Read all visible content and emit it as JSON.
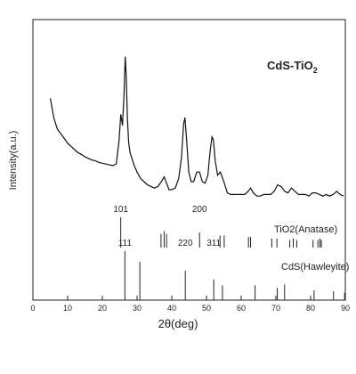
{
  "chart_data": {
    "type": "line",
    "xlabel": "2θ(deg)",
    "ylabel": "Intensity(a.u.)",
    "xlim": [
      0,
      90
    ],
    "xticks": [
      0,
      10,
      20,
      30,
      40,
      50,
      60,
      70,
      80,
      90
    ],
    "sample_label": "CdS-TiO2",
    "series": [
      {
        "x": [
          5,
          5.5,
          6,
          7,
          8,
          9,
          10,
          11,
          12,
          13,
          14,
          15,
          16,
          17,
          18,
          19,
          20,
          21,
          22,
          23,
          24,
          24.8,
          25.3,
          25.8,
          26.2,
          26.6,
          26.9,
          27.2,
          27.6,
          28,
          28.6,
          29.2,
          30,
          31,
          32,
          33,
          34,
          35,
          36,
          37,
          37.8,
          38.5,
          39.2,
          40,
          41,
          42,
          42.8,
          43.4,
          43.8,
          44.3,
          44.9,
          45.6,
          46.3,
          47.2,
          48,
          48.8,
          49.6,
          50.4,
          51,
          51.6,
          52,
          52.5,
          53.2,
          54,
          55,
          56,
          57,
          58,
          59,
          60,
          61,
          62,
          62.7,
          63.5,
          64.5,
          65.5,
          66.5,
          67.5,
          68.5,
          69.5,
          70.5,
          71.5,
          72.5,
          73.5,
          74.5,
          75.5,
          76.5,
          77.5,
          78.5,
          79.5,
          80.5,
          81.5,
          82.5,
          83.5,
          84.5,
          85.5,
          86.5,
          87.5,
          88.5,
          89.5
        ],
        "y": [
          0.72,
          0.66,
          0.6,
          0.53,
          0.5,
          0.47,
          0.44,
          0.42,
          0.4,
          0.38,
          0.37,
          0.355,
          0.345,
          0.335,
          0.33,
          0.32,
          0.315,
          0.31,
          0.305,
          0.3,
          0.31,
          0.45,
          0.62,
          0.55,
          0.72,
          0.98,
          0.85,
          0.6,
          0.44,
          0.38,
          0.34,
          0.3,
          0.26,
          0.22,
          0.2,
          0.18,
          0.17,
          0.16,
          0.17,
          0.2,
          0.23,
          0.19,
          0.15,
          0.15,
          0.16,
          0.22,
          0.35,
          0.56,
          0.6,
          0.45,
          0.26,
          0.2,
          0.2,
          0.26,
          0.26,
          0.2,
          0.19,
          0.24,
          0.38,
          0.48,
          0.46,
          0.33,
          0.24,
          0.26,
          0.2,
          0.13,
          0.12,
          0.12,
          0.12,
          0.12,
          0.12,
          0.14,
          0.16,
          0.13,
          0.11,
          0.11,
          0.12,
          0.12,
          0.12,
          0.14,
          0.18,
          0.17,
          0.14,
          0.13,
          0.16,
          0.14,
          0.12,
          0.12,
          0.12,
          0.11,
          0.13,
          0.13,
          0.12,
          0.11,
          0.12,
          0.11,
          0.12,
          0.14,
          0.12,
          0.11
        ]
      }
    ],
    "reference_patterns": [
      {
        "name": "TiO2(Anatase)",
        "sticks": [
          {
            "x": 25.3,
            "h": 1.0
          },
          {
            "x": 36.9,
            "h": 0.45
          },
          {
            "x": 37.8,
            "h": 0.55
          },
          {
            "x": 38.5,
            "h": 0.45
          },
          {
            "x": 48.0,
            "h": 0.5
          },
          {
            "x": 53.9,
            "h": 0.4
          },
          {
            "x": 55.1,
            "h": 0.4
          },
          {
            "x": 62.1,
            "h": 0.35
          },
          {
            "x": 62.7,
            "h": 0.35
          },
          {
            "x": 68.8,
            "h": 0.3
          },
          {
            "x": 70.3,
            "h": 0.3
          },
          {
            "x": 74.0,
            "h": 0.25
          },
          {
            "x": 75.0,
            "h": 0.3
          },
          {
            "x": 76.0,
            "h": 0.25
          },
          {
            "x": 80.7,
            "h": 0.25
          },
          {
            "x": 82.1,
            "h": 0.25
          },
          {
            "x": 82.7,
            "h": 0.3
          },
          {
            "x": 83.1,
            "h": 0.25
          }
        ],
        "peak_labels": [
          {
            "x": 25.3,
            "text": "101"
          },
          {
            "x": 48.0,
            "text": "200"
          }
        ]
      },
      {
        "name": "CdS(Hawleyite)",
        "sticks": [
          {
            "x": 26.5,
            "h": 1.0
          },
          {
            "x": 30.8,
            "h": 0.78
          },
          {
            "x": 43.9,
            "h": 0.6
          },
          {
            "x": 52.1,
            "h": 0.42
          },
          {
            "x": 54.6,
            "h": 0.3
          },
          {
            "x": 64.0,
            "h": 0.3
          },
          {
            "x": 70.4,
            "h": 0.25
          },
          {
            "x": 72.5,
            "h": 0.32
          },
          {
            "x": 81.0,
            "h": 0.2
          },
          {
            "x": 86.6,
            "h": 0.18
          },
          {
            "x": 89.8,
            "h": 0.15
          }
        ],
        "peak_labels": [
          {
            "x": 26.5,
            "text": "111"
          },
          {
            "x": 43.9,
            "text": "220"
          },
          {
            "x": 52.1,
            "text": "311"
          }
        ]
      }
    ]
  }
}
